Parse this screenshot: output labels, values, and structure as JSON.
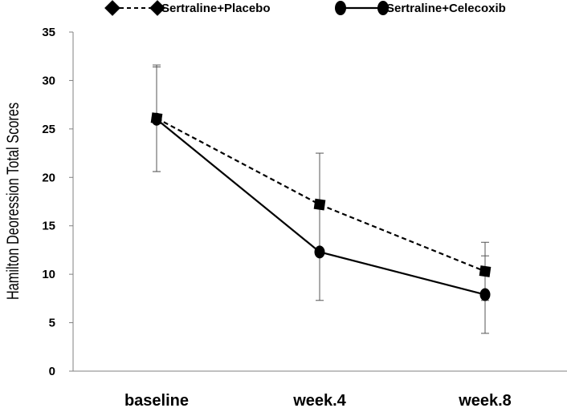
{
  "chart_data": {
    "type": "line",
    "title": "",
    "xlabel": "",
    "ylabel": "Hamilton Deoression Total Scores",
    "categories": [
      "baseline",
      "week.4",
      "week.8"
    ],
    "ylim": [
      0,
      35
    ],
    "yticks": [
      0,
      5,
      10,
      15,
      20,
      25,
      30,
      35
    ],
    "grid": false,
    "legend_position": "top",
    "series": [
      {
        "name": "Sertraline+Placebo",
        "values": [
          26.1,
          17.2,
          10.3
        ],
        "error": [
          5.5,
          5.3,
          3.0
        ],
        "line_style": "dashed",
        "marker": "square-diamond",
        "color": "#000000"
      },
      {
        "name": "Sertraline+Celecoxib",
        "values": [
          26.0,
          12.3,
          7.9
        ],
        "error": [
          5.4,
          5.0,
          4.0
        ],
        "line_style": "solid",
        "marker": "ellipse",
        "color": "#000000"
      }
    ]
  }
}
